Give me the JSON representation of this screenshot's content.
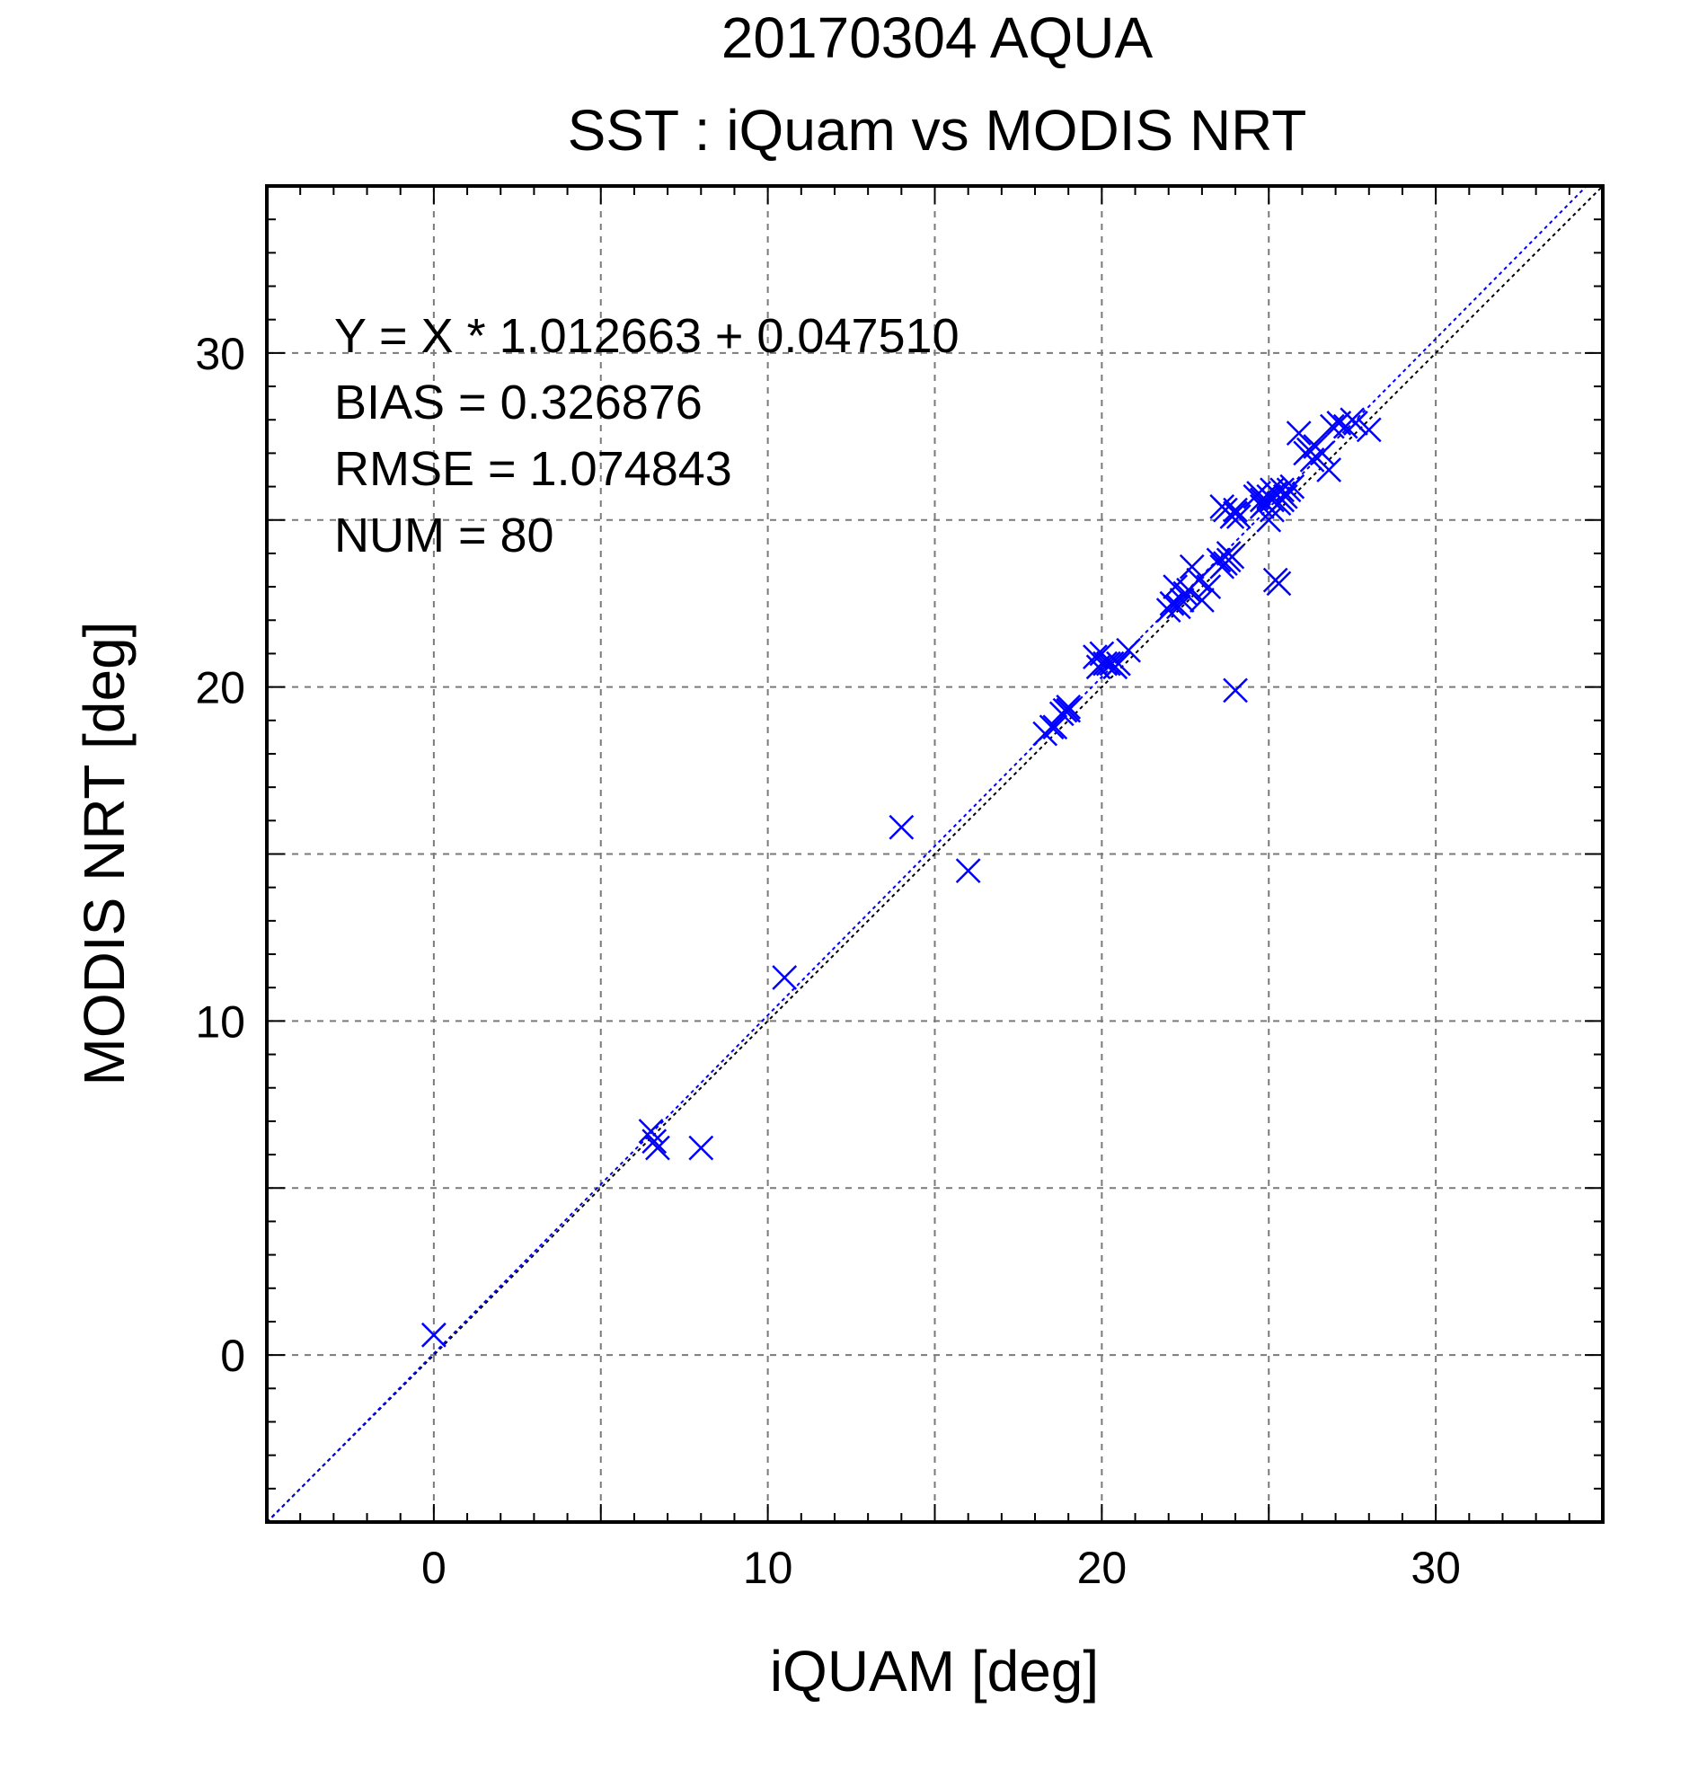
{
  "chart_data": {
    "type": "scatter",
    "title": "20170304 AQUA",
    "subtitle": "SST : iQuam vs MODIS NRT",
    "xlabel": "iQUAM [deg]",
    "ylabel": "MODIS NRT [deg]",
    "xlim": [
      -5,
      35
    ],
    "ylim": [
      -5,
      35
    ],
    "xticks": [
      0,
      10,
      20,
      30
    ],
    "yticks": [
      0,
      10,
      20,
      30
    ],
    "xtick_labels": [
      "0",
      "10",
      "20",
      "30"
    ],
    "ytick_labels": [
      "0",
      "10",
      "20",
      "30"
    ],
    "grid": true,
    "marker_color": "#0000ff",
    "annotations": [
      "Y = X * 1.012663 + 0.047510",
      "BIAS = 0.326876",
      "RMSE = 1.074843",
      "NUM = 80"
    ],
    "fit": {
      "slope": 1.012663,
      "intercept": 0.04751,
      "color": "#0000ff"
    },
    "reference_line": {
      "slope": 1,
      "intercept": 0,
      "color": "#000000"
    },
    "series": [
      {
        "x": [
          0.0,
          6.5,
          6.6,
          6.7,
          8.0,
          10.5,
          14.0,
          16.0,
          18.3,
          18.5,
          18.8,
          18.9,
          19.0,
          19.8,
          19.9,
          20.0,
          20.2,
          20.3,
          20.4,
          20.8,
          22.0,
          22.1,
          22.2,
          22.4,
          22.6,
          22.7,
          22.9,
          23.0,
          23.5,
          23.6,
          23.7,
          23.8,
          23.6,
          23.7,
          23.9,
          24.0,
          24.1,
          24.0,
          24.7,
          24.8,
          24.9,
          25.0,
          25.1,
          25.2,
          25.3,
          25.4,
          25.5,
          25.6,
          25.0,
          25.2,
          25.3,
          25.1,
          25.9,
          26.1,
          26.3,
          26.4,
          26.6,
          26.8,
          26.9,
          27.1,
          27.3,
          27.5,
          28.0,
          24.0,
          23.8,
          24.8,
          25.1,
          25.4,
          22.3,
          22.5,
          20.1,
          20.5,
          19.0,
          18.6,
          23.9,
          24.6,
          26.2,
          27.6,
          25.7,
          23.2
        ],
        "y": [
          0.6,
          6.7,
          6.4,
          6.2,
          6.2,
          11.3,
          15.8,
          14.5,
          18.6,
          18.8,
          19.2,
          19.3,
          19.4,
          20.9,
          20.6,
          21.0,
          20.7,
          20.7,
          20.6,
          21.1,
          22.3,
          22.5,
          23.0,
          22.6,
          22.9,
          23.6,
          23.2,
          22.6,
          23.8,
          23.6,
          23.7,
          24.0,
          25.4,
          25.3,
          25.1,
          25.2,
          25.1,
          19.9,
          25.8,
          25.6,
          25.5,
          25.7,
          25.6,
          25.8,
          25.5,
          25.6,
          25.7,
          25.9,
          25.0,
          23.2,
          23.1,
          25.3,
          27.6,
          27.0,
          26.8,
          27.2,
          27.0,
          26.5,
          27.8,
          27.9,
          27.8,
          28.0,
          27.7,
          25.3,
          23.8,
          25.4,
          25.9,
          25.9,
          22.4,
          22.8,
          20.7,
          20.7,
          19.3,
          18.8,
          23.9,
          25.7,
          27.1,
          27.9,
          26.0,
          23.0
        ]
      }
    ]
  }
}
